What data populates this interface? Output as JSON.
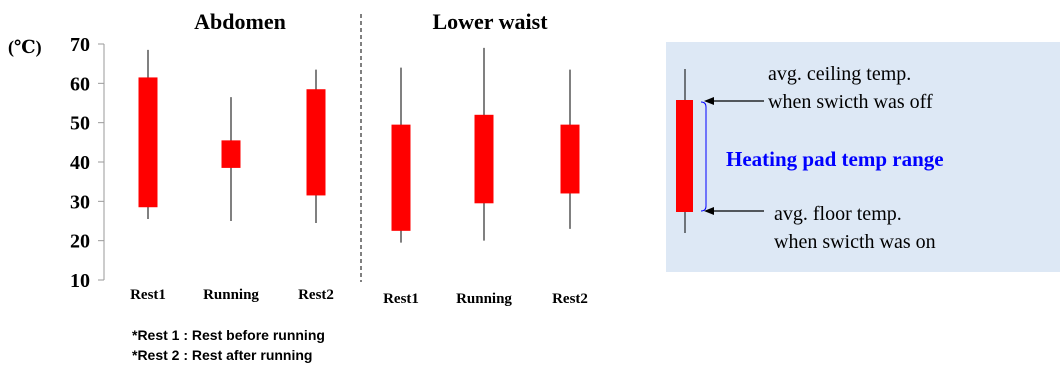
{
  "chart_data": {
    "type": "box",
    "ylabel": "(℃)",
    "ylim": [
      10,
      70
    ],
    "yticks": [
      10,
      20,
      30,
      40,
      50,
      60,
      70
    ],
    "groups": [
      {
        "title": "Abdomen",
        "categories": [
          "Rest1",
          "Running",
          "Rest2"
        ],
        "boxes": [
          {
            "whisker_low": 25.5,
            "low": 28.5,
            "high": 61.5,
            "whisker_high": 68.5
          },
          {
            "whisker_low": 25,
            "low": 38.5,
            "high": 45.5,
            "whisker_high": 56.5
          },
          {
            "whisker_low": 24.5,
            "low": 31.5,
            "high": 58.5,
            "whisker_high": 63.5
          }
        ]
      },
      {
        "title": "Lower waist",
        "categories": [
          "Rest1",
          "Running",
          "Rest2"
        ],
        "boxes": [
          {
            "whisker_low": 19.5,
            "low": 22.5,
            "high": 49.5,
            "whisker_high": 64
          },
          {
            "whisker_low": 20,
            "low": 29.5,
            "high": 52,
            "whisker_high": 69
          },
          {
            "whisker_low": 23,
            "low": 32,
            "high": 49.5,
            "whisker_high": 63.5
          }
        ]
      }
    ],
    "box_color": "#ff0000"
  },
  "footnotes": [
    "*Rest 1 : Rest before running",
    "*Rest 2 : Rest after running"
  ],
  "legend": {
    "ceiling_label_1": "avg. ceiling temp.",
    "ceiling_label_2": "when swicth was off",
    "range_label": "Heating pad temp range",
    "floor_label_1": "avg. floor temp.",
    "floor_label_2": "when swicth was on",
    "range_label_color": "#0000ff",
    "background_color": "#dde8f5"
  }
}
